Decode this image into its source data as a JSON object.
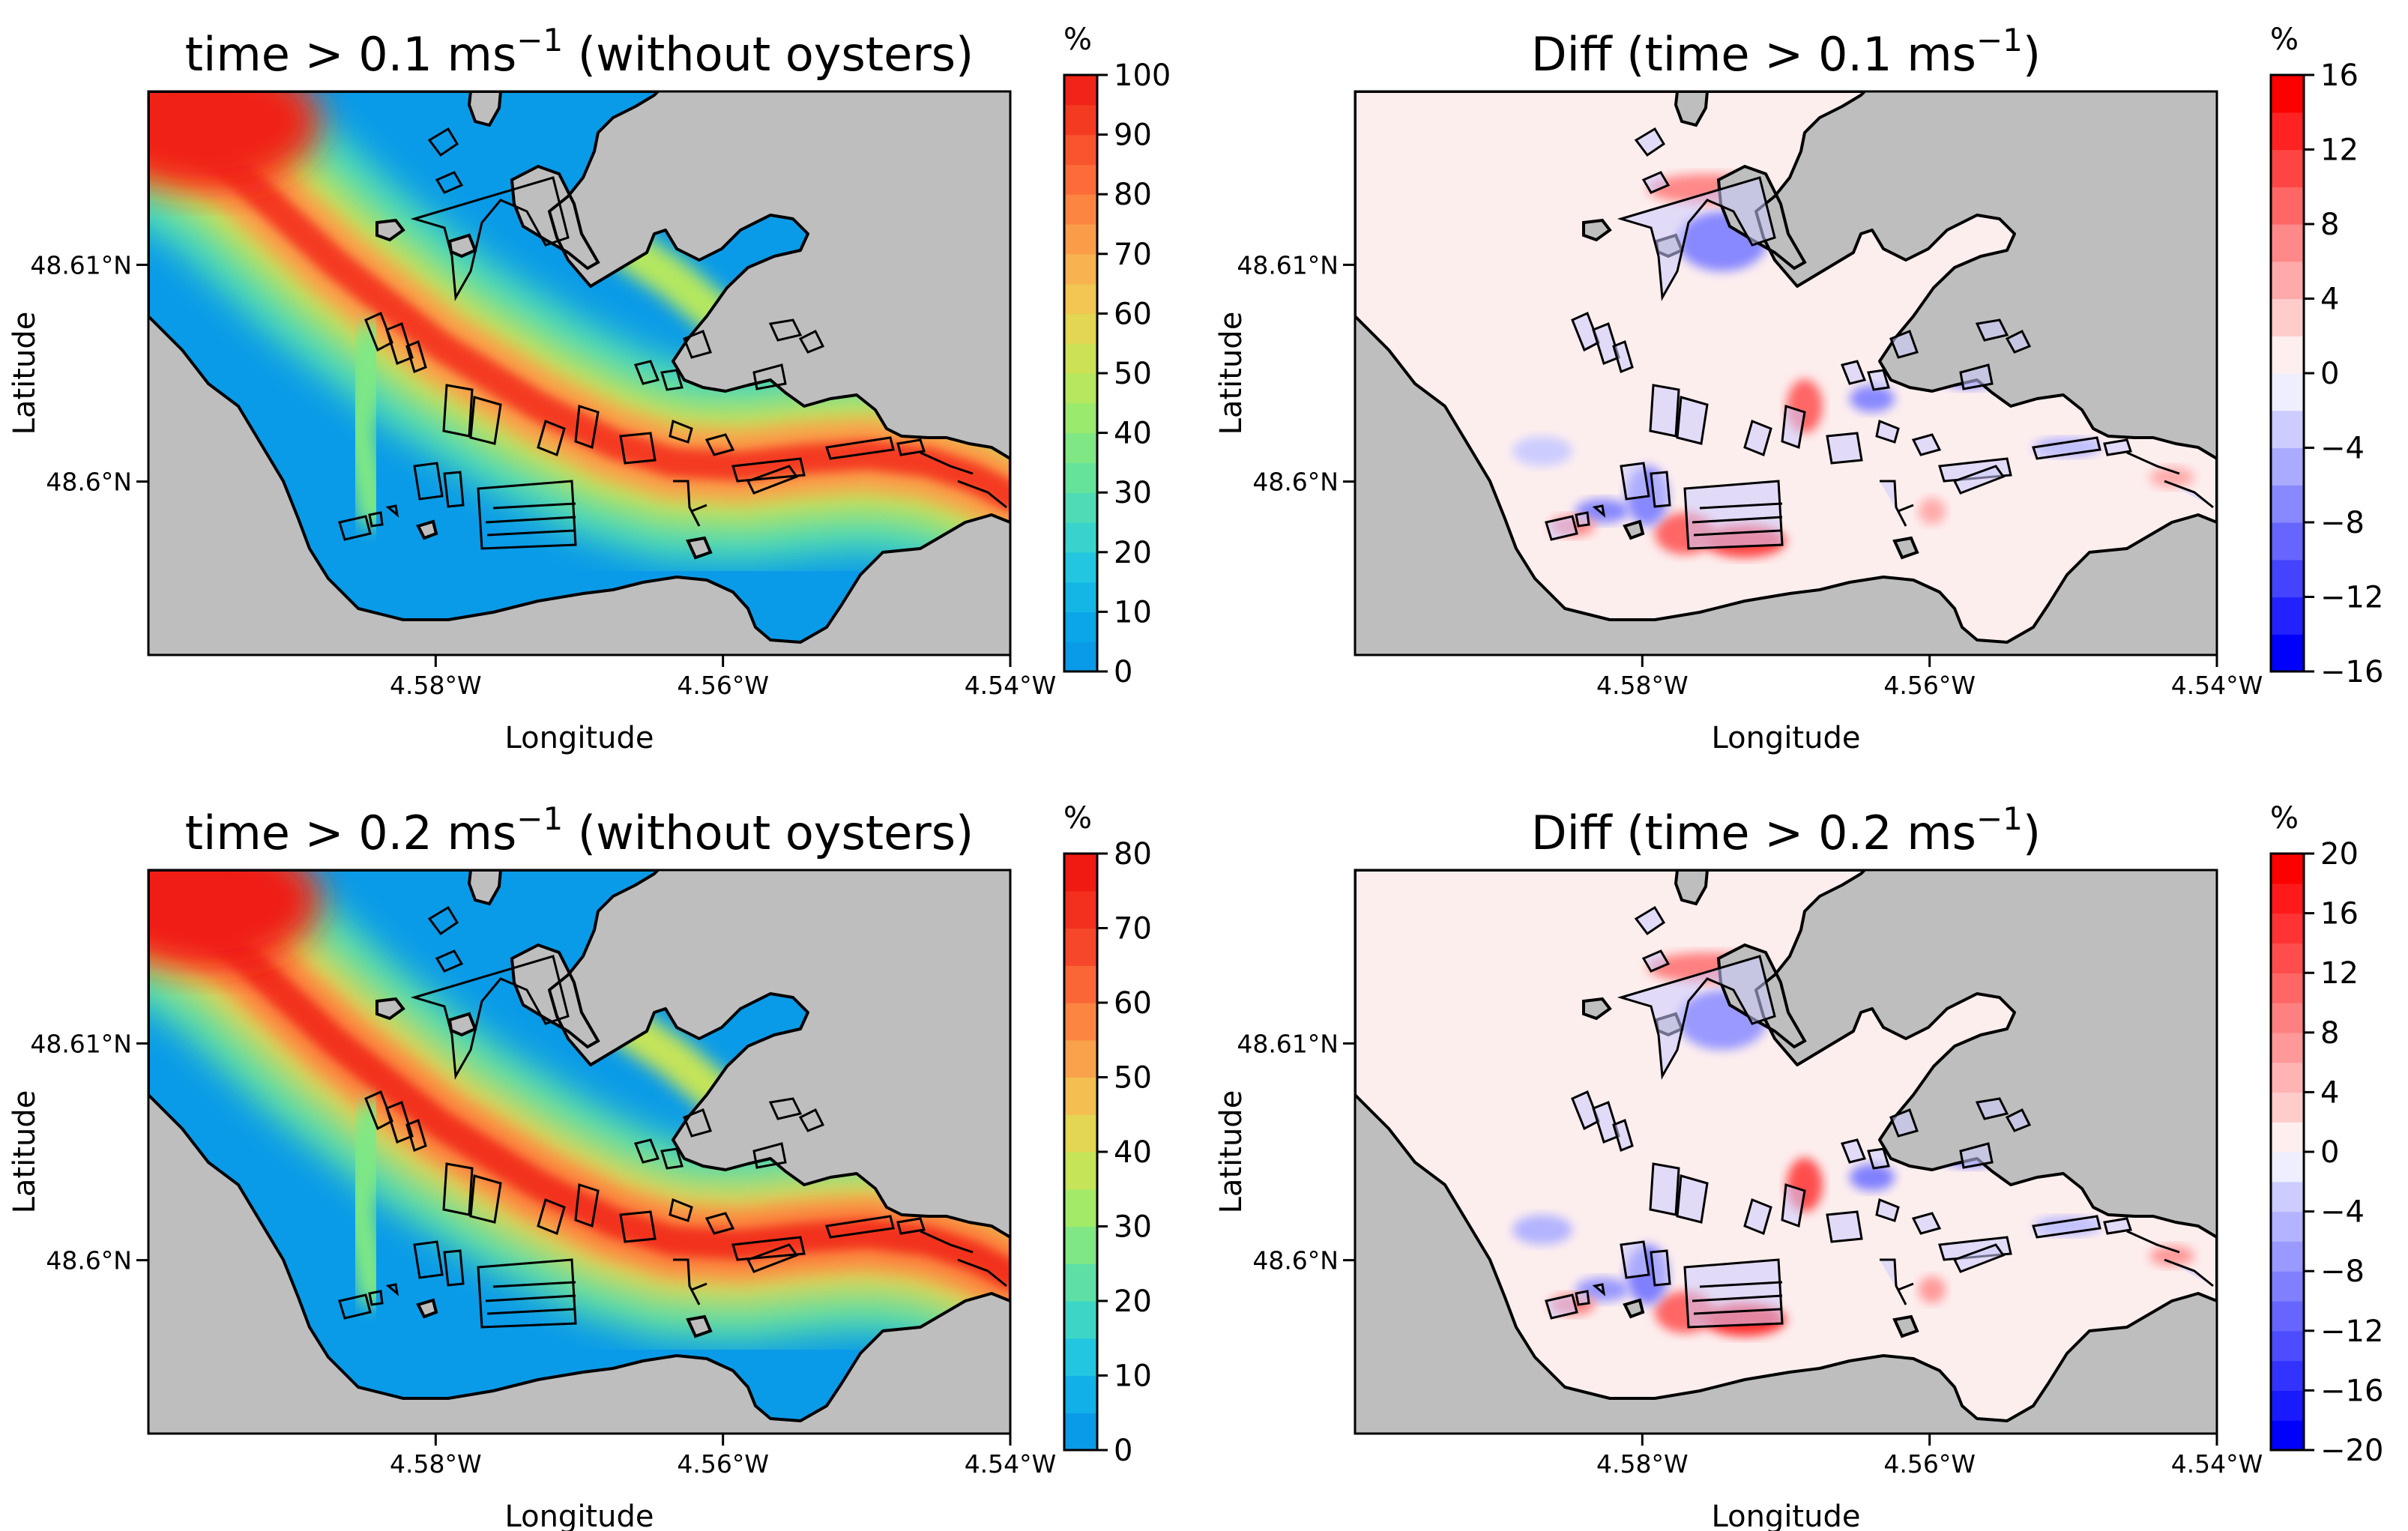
{
  "chart_data": [
    {
      "type": "heatmap",
      "title_prefix": "time ",
      "title_threshold": "> 0.1 ms",
      "title_exponent": "−1",
      "title_suffix": " (without oysters)",
      "xlabel": "Longitude",
      "ylabel": "Latitude",
      "xticks": [
        {
          "value": -4.58,
          "label": "4.58°W"
        },
        {
          "value": -4.56,
          "label": "4.56°W"
        },
        {
          "value": -4.54,
          "label": "4.54°W"
        }
      ],
      "yticks": [
        {
          "value": 48.61,
          "label": "48.61°N"
        },
        {
          "value": 48.6,
          "label": "48.6°N"
        }
      ],
      "xlim": [
        -4.6,
        -4.54
      ],
      "ylim": [
        48.592,
        48.618
      ],
      "grid": false,
      "colorbar": {
        "unit": "%",
        "colormap": "rainbow",
        "range": [
          0,
          100
        ],
        "ticks": [
          "0",
          "10",
          "20",
          "30",
          "40",
          "50",
          "60",
          "70",
          "80",
          "90",
          "100"
        ],
        "levels": 20,
        "colors": [
          "#0a9be8",
          "#0aa6e9",
          "#14b6e6",
          "#22c6e0",
          "#38d4cc",
          "#4fdcb4",
          "#66e39b",
          "#7fe884",
          "#9aea6e",
          "#b5e85e",
          "#cde155",
          "#e2d653",
          "#f1c652",
          "#f8b24f",
          "#fb9c49",
          "#fc8541",
          "#fb6c38",
          "#f8542d",
          "#f43b22",
          "#f02418"
        ]
      }
    },
    {
      "type": "heatmap",
      "title_prefix": "Diff (time ",
      "title_threshold": "> 0.1 ms",
      "title_exponent": "−1",
      "title_suffix": ")",
      "xlabel": "Longitude",
      "ylabel": "Latitude",
      "xticks": [
        {
          "value": -4.58,
          "label": "4.58°W"
        },
        {
          "value": -4.56,
          "label": "4.56°W"
        },
        {
          "value": -4.54,
          "label": "4.54°W"
        }
      ],
      "yticks": [
        {
          "value": 48.61,
          "label": "48.61°N"
        },
        {
          "value": 48.6,
          "label": "48.6°N"
        }
      ],
      "xlim": [
        -4.6,
        -4.54
      ],
      "ylim": [
        48.592,
        48.618
      ],
      "grid": false,
      "colorbar": {
        "unit": "%",
        "colormap": "bwr",
        "range": [
          -16,
          16
        ],
        "ticks": [
          "−16",
          "−12",
          "−8",
          "−4",
          "0",
          "4",
          "8",
          "12",
          "16"
        ],
        "levels": 16,
        "colors": [
          "#0000ff",
          "#2222ff",
          "#4444ff",
          "#6666ff",
          "#8888ff",
          "#aaaaff",
          "#ccccff",
          "#eeeeff",
          "#ffeeee",
          "#ffcccc",
          "#ffaaaa",
          "#ff8888",
          "#ff6666",
          "#ff4444",
          "#ff2222",
          "#ff0000"
        ]
      }
    },
    {
      "type": "heatmap",
      "title_prefix": "time ",
      "title_threshold": "> 0.2 ms",
      "title_exponent": "−1",
      "title_suffix": " (without oysters)",
      "xlabel": "Longitude",
      "ylabel": "Latitude",
      "xticks": [
        {
          "value": -4.58,
          "label": "4.58°W"
        },
        {
          "value": -4.56,
          "label": "4.56°W"
        },
        {
          "value": -4.54,
          "label": "4.54°W"
        }
      ],
      "yticks": [
        {
          "value": 48.61,
          "label": "48.61°N"
        },
        {
          "value": 48.6,
          "label": "48.6°N"
        }
      ],
      "xlim": [
        -4.6,
        -4.54
      ],
      "ylim": [
        48.592,
        48.618
      ],
      "grid": false,
      "colorbar": {
        "unit": "%",
        "colormap": "rainbow",
        "range": [
          0,
          80
        ],
        "ticks": [
          "0",
          "10",
          "20",
          "30",
          "40",
          "50",
          "60",
          "70",
          "80"
        ],
        "levels": 16,
        "colors": [
          "#0a9be8",
          "#12b0e8",
          "#22c6e0",
          "#3dd6c6",
          "#5ddfa6",
          "#7fe884",
          "#a2ea68",
          "#c5e458",
          "#e2d653",
          "#f4bf50",
          "#faa24b",
          "#fc8541",
          "#fa6636",
          "#f6472a",
          "#f2301d",
          "#f01a12"
        ]
      }
    },
    {
      "type": "heatmap",
      "title_prefix": "Diff (time ",
      "title_threshold": "> 0.2 ms",
      "title_exponent": "−1",
      "title_suffix": ")",
      "xlabel": "Longitude",
      "ylabel": "Latitude",
      "xticks": [
        {
          "value": -4.58,
          "label": "4.58°W"
        },
        {
          "value": -4.56,
          "label": "4.56°W"
        },
        {
          "value": -4.54,
          "label": "4.54°W"
        }
      ],
      "yticks": [
        {
          "value": 48.61,
          "label": "48.61°N"
        },
        {
          "value": 48.6,
          "label": "48.6°N"
        }
      ],
      "xlim": [
        -4.6,
        -4.54
      ],
      "ylim": [
        48.592,
        48.618
      ],
      "grid": false,
      "colorbar": {
        "unit": "%",
        "colormap": "bwr",
        "range": [
          -20,
          20
        ],
        "ticks": [
          "−20",
          "−16",
          "−12",
          "−8",
          "−4",
          "0",
          "4",
          "8",
          "12",
          "16",
          "20"
        ],
        "levels": 20,
        "colors": [
          "#0000ff",
          "#1a1aff",
          "#3333ff",
          "#4d4dff",
          "#6666ff",
          "#8080ff",
          "#9999ff",
          "#b3b3ff",
          "#ccccff",
          "#eeeeff",
          "#ffeeee",
          "#ffcccc",
          "#ffb3b3",
          "#ff9999",
          "#ff8080",
          "#ff6666",
          "#ff4d4d",
          "#ff3333",
          "#ff1a1a",
          "#ff0000"
        ]
      }
    }
  ],
  "colors": {
    "land": "#bebebe",
    "coastline": "#000000",
    "water_base_abs": "#0a9be8",
    "water_base_diff": "#fdeeee"
  }
}
